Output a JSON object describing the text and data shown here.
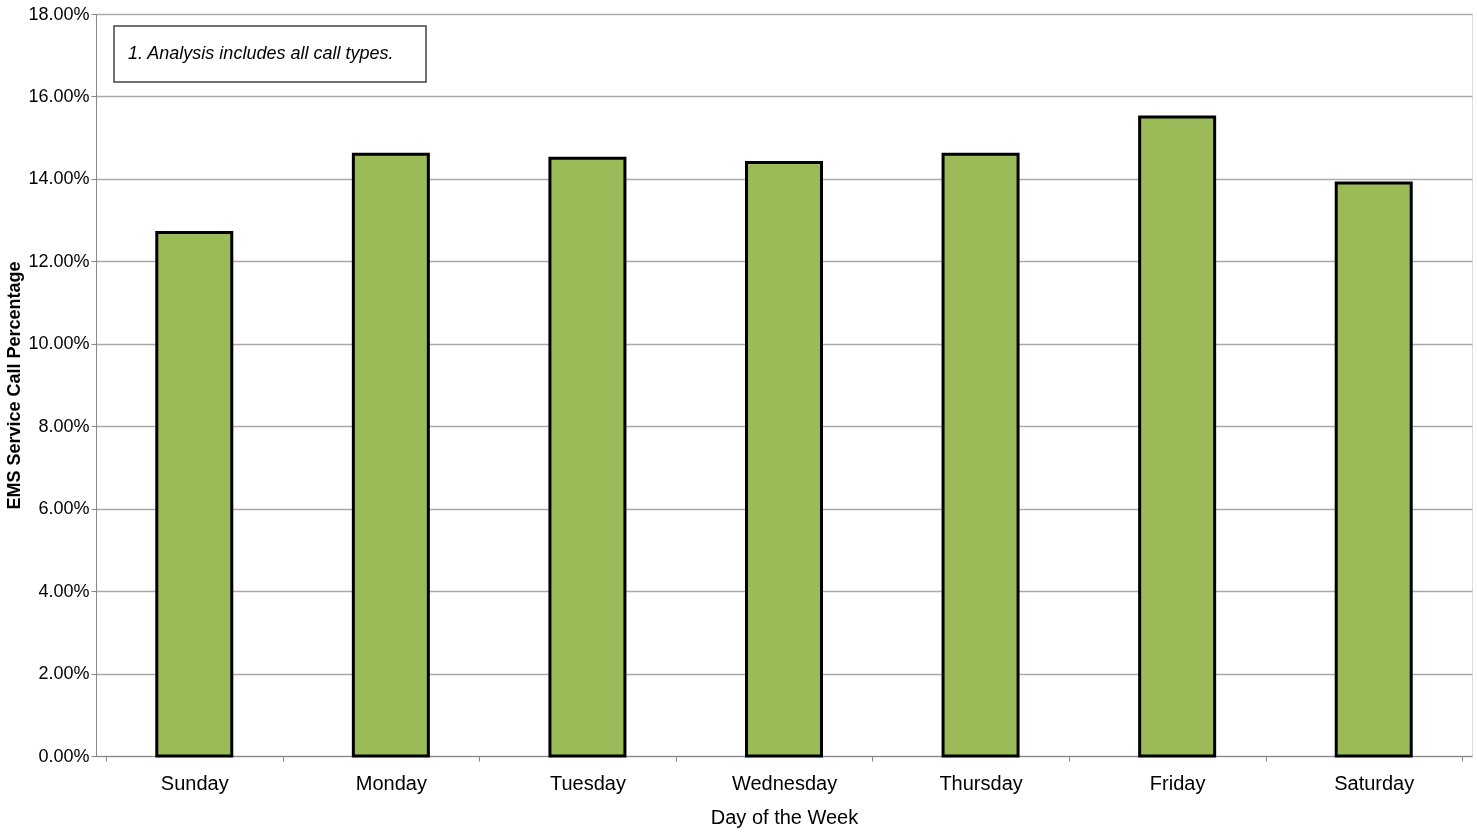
{
  "chart_data": {
    "type": "bar",
    "xlabel": "Day of the Week",
    "ylabel": "EMS Service Call Percentage",
    "categories": [
      "Sunday",
      "Monday",
      "Tuesday",
      "Wednesday",
      "Thursday",
      "Friday",
      "Saturday"
    ],
    "values": [
      12.7,
      14.6,
      14.5,
      14.4,
      14.6,
      15.5,
      13.9
    ],
    "color": "#9bbb59",
    "ylim": [
      0,
      18
    ],
    "yticks": [
      {
        "value": 0,
        "label": "0.00%"
      },
      {
        "value": 2,
        "label": "2.00%"
      },
      {
        "value": 4,
        "label": "4.00%"
      },
      {
        "value": 6,
        "label": "6.00%"
      },
      {
        "value": 8,
        "label": "8.00%"
      },
      {
        "value": 10,
        "label": "10.00%"
      },
      {
        "value": 12,
        "label": "12.00%"
      },
      {
        "value": 14,
        "label": "14.00%"
      },
      {
        "value": 16,
        "label": "16.00%"
      },
      {
        "value": 18,
        "label": "18.00%"
      }
    ],
    "grid": "y",
    "annotations": [
      "1. Analysis  includes all call types."
    ]
  }
}
